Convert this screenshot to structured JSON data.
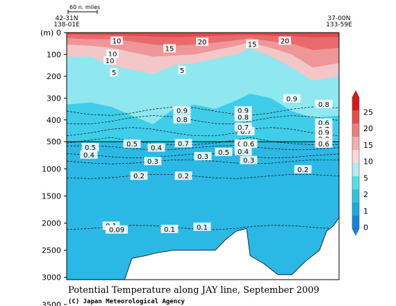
{
  "chart_data": {
    "type": "heatmap",
    "title": "Potential Temperature along JAY line, September 2009",
    "credit": "(C) Japan Meteorological Agency",
    "scale_bar_label": "60 n. miles",
    "left_station": {
      "lat": "42-31N",
      "lon": "138-01E"
    },
    "right_station": {
      "lat": "37-00N",
      "lon": "133-59E"
    },
    "y_unit": "(m)",
    "y_ticks_upper": [
      "0",
      "100",
      "200",
      "300",
      "400",
      "500"
    ],
    "y_ticks_lower": [
      "1000",
      "1500",
      "2000",
      "2500",
      "3000",
      "3500"
    ],
    "y_axis_break": [
      500,
      500
    ],
    "colorbar": {
      "levels": [
        "25",
        "20",
        "15",
        "10",
        "5",
        "2",
        "1",
        "0"
      ],
      "colors": [
        "#d7191c",
        "#e34a4c",
        "#ee7b7d",
        "#f5aeb0",
        "#fbd6d7",
        "#b2ebf2",
        "#55dde8",
        "#2bc5df",
        "#1ca9de",
        "#1583dd"
      ]
    },
    "colors": {
      "band_0_1": "#2bb8e4",
      "band_1_2": "#40cdea",
      "band_2_5": "#8fe8f0",
      "band_5_10": "#f3c6c8",
      "band_10_15": "#ee9698",
      "band_15_20": "#e86a6d",
      "band_20_25": "#e04a4d",
      "grid_dash": "#000000"
    },
    "contour_labels": [
      {
        "text": "10",
        "depth_m": 40
      },
      {
        "text": "15",
        "depth_m": 75
      },
      {
        "text": "20",
        "depth_m": 45
      },
      {
        "text": "15",
        "depth_m": 55
      },
      {
        "text": "20",
        "depth_m": 40
      },
      {
        "text": "10",
        "depth_m": 100
      },
      {
        "text": "5",
        "depth_m": 185
      },
      {
        "text": "10",
        "depth_m": 130
      },
      {
        "text": "5",
        "depth_m": 175
      },
      {
        "text": "0.9",
        "depth_m": 360
      },
      {
        "text": "0.8",
        "depth_m": 400
      },
      {
        "text": "0.7",
        "depth_m": 455
      },
      {
        "text": "0.9",
        "depth_m": 360
      },
      {
        "text": "0.8",
        "depth_m": 390
      },
      {
        "text": "0.7",
        "depth_m": 435
      },
      {
        "text": "0.9",
        "depth_m": 305
      },
      {
        "text": "0.8",
        "depth_m": 330
      },
      {
        "text": "0.6",
        "depth_m": 415
      },
      {
        "text": "0.5",
        "depth_m": 480
      },
      {
        "text": "0.7",
        "depth_m": 445
      },
      {
        "text": "0.9",
        "depth_m": 460
      },
      {
        "text": "0.8",
        "depth_m": 490
      },
      {
        "text": "0.7",
        "depth_m": 520
      },
      {
        "text": "0.6",
        "depth_m": 550
      },
      {
        "text": "0.5",
        "depth_m": 610
      },
      {
        "text": "0.4",
        "depth_m": 750
      },
      {
        "text": "0.3",
        "depth_m": 870
      },
      {
        "text": "0.2",
        "depth_m": 1140
      },
      {
        "text": "0.7",
        "depth_m": 540
      },
      {
        "text": "0.5",
        "depth_m": 700
      },
      {
        "text": "0.7",
        "depth_m": 550
      },
      {
        "text": "0.5",
        "depth_m": 550
      },
      {
        "text": "0.4",
        "depth_m": 690
      },
      {
        "text": "0.3",
        "depth_m": 850
      },
      {
        "text": "0.6",
        "depth_m": 550
      },
      {
        "text": "0.5",
        "depth_m": 550
      },
      {
        "text": "0.4",
        "depth_m": 620
      },
      {
        "text": "0.3",
        "depth_m": 780
      },
      {
        "text": "0.2",
        "depth_m": 1020
      },
      {
        "text": "0.2",
        "depth_m": 1140
      },
      {
        "text": "0.1",
        "depth_m": 2060
      },
      {
        "text": "0.09",
        "depth_m": 2130
      },
      {
        "text": "0.1",
        "depth_m": 2120
      },
      {
        "text": "0.1",
        "depth_m": 2080
      }
    ]
  }
}
